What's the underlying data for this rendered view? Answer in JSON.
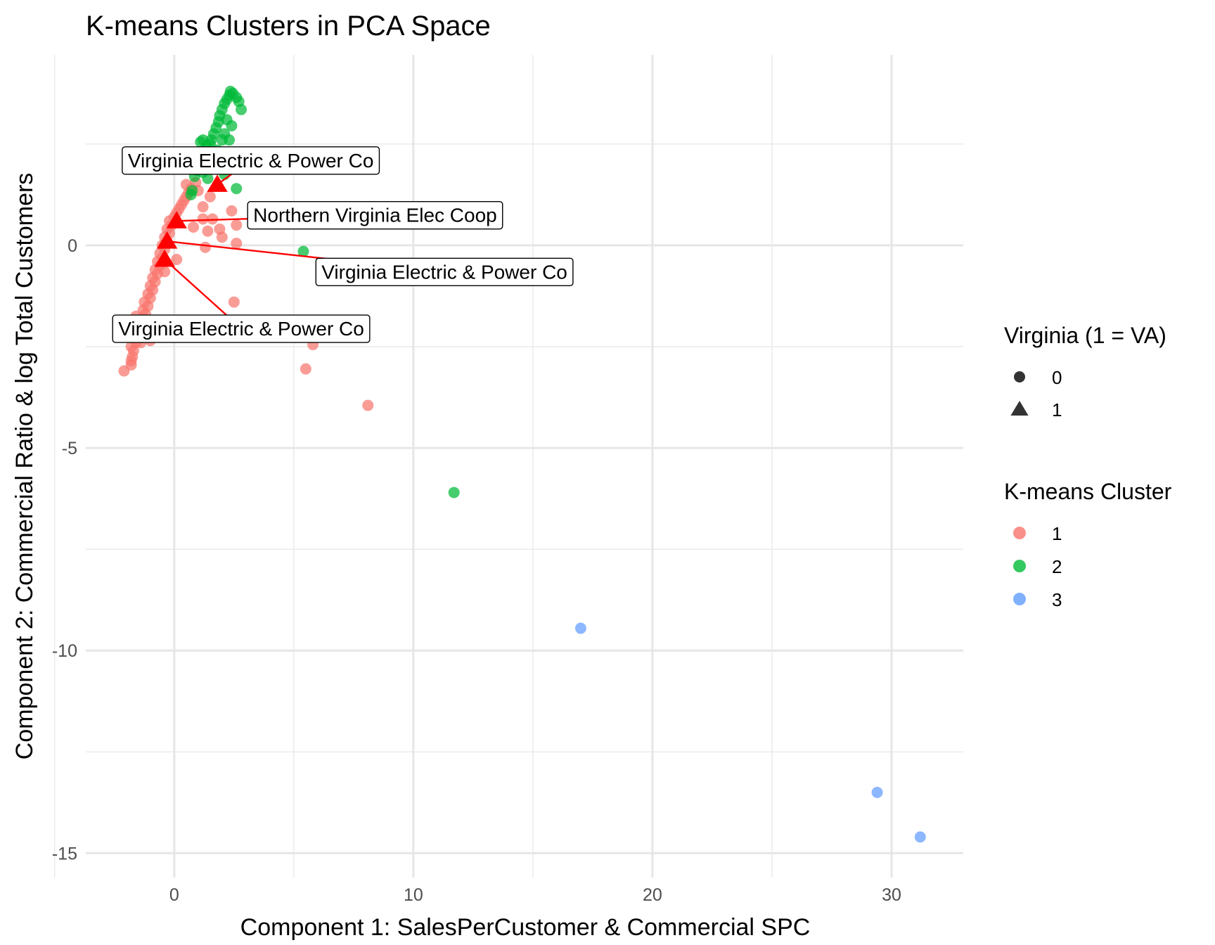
{
  "chart_data": {
    "type": "scatter",
    "title": "K-means Clusters in PCA Space",
    "xlabel": "Component 1: SalesPerCustomer & Commercial SPC",
    "ylabel": "Component 2: Commercial Ratio & log Total Customers",
    "xlim": [
      -3.7,
      33
    ],
    "ylim": [
      -15.6,
      4.7
    ],
    "x_ticks": [
      0,
      10,
      20,
      30
    ],
    "y_ticks": [
      0,
      -5,
      -10,
      -15
    ],
    "x_minor": [
      -5,
      5,
      15,
      25
    ],
    "y_minor": [
      2.5,
      -2.5,
      -7.5,
      -12.5
    ],
    "grid": true,
    "legend_position": "right",
    "cluster_colors": {
      "1": "#f8766d",
      "2": "#00ba38",
      "3": "#619cff"
    },
    "highlight_color": "#ff0000",
    "legends": [
      {
        "title": "Virginia (1 = VA)",
        "items": [
          {
            "label": "0",
            "shape": "circle"
          },
          {
            "label": "1",
            "shape": "triangle"
          }
        ]
      },
      {
        "title": "K-means Cluster",
        "items": [
          {
            "label": "1",
            "cluster": "1"
          },
          {
            "label": "2",
            "cluster": "2"
          },
          {
            "label": "3",
            "cluster": "3"
          }
        ]
      }
    ],
    "series": [
      {
        "name": "1",
        "points": [
          [
            -2.1,
            -3.1
          ],
          [
            -1.8,
            -2.95
          ],
          [
            -1.8,
            -2.85
          ],
          [
            -1.75,
            -2.75
          ],
          [
            -1.7,
            -2.6
          ],
          [
            -1.8,
            -2.5
          ],
          [
            -1.6,
            -2.4
          ],
          [
            -1.5,
            -2.25
          ],
          [
            -1.4,
            -2.15
          ],
          [
            -1.5,
            -2.05
          ],
          [
            -1.3,
            -1.95
          ],
          [
            -1.4,
            -1.85
          ],
          [
            -1.2,
            -1.7
          ],
          [
            -1.3,
            -1.6
          ],
          [
            -1.1,
            -1.5
          ],
          [
            -1.25,
            -1.4
          ],
          [
            -1.0,
            -1.3
          ],
          [
            -1.1,
            -1.2
          ],
          [
            -0.9,
            -1.1
          ],
          [
            -1.0,
            -1.0
          ],
          [
            -0.8,
            -0.9
          ],
          [
            -0.9,
            -0.8
          ],
          [
            -0.7,
            -0.7
          ],
          [
            -0.8,
            -0.6
          ],
          [
            -0.6,
            -0.5
          ],
          [
            -0.7,
            -0.4
          ],
          [
            -0.5,
            -0.3
          ],
          [
            -0.6,
            -0.2
          ],
          [
            -0.4,
            -0.1
          ],
          [
            -0.5,
            0.0
          ],
          [
            -0.3,
            0.1
          ],
          [
            -0.4,
            0.2
          ],
          [
            -0.2,
            0.3
          ],
          [
            -0.3,
            0.4
          ],
          [
            -0.1,
            0.5
          ],
          [
            -0.2,
            0.6
          ],
          [
            0.0,
            0.7
          ],
          [
            0.1,
            0.8
          ],
          [
            0.2,
            0.9
          ],
          [
            0.3,
            1.0
          ],
          [
            0.4,
            1.1
          ],
          [
            0.5,
            1.2
          ],
          [
            0.6,
            1.3
          ],
          [
            0.7,
            1.4
          ],
          [
            0.5,
            1.5
          ],
          [
            1.0,
            1.35
          ],
          [
            0.9,
            1.55
          ],
          [
            1.2,
            0.95
          ],
          [
            1.5,
            1.2
          ],
          [
            1.2,
            0.65
          ],
          [
            0.8,
            0.45
          ],
          [
            1.4,
            0.35
          ],
          [
            1.6,
            0.65
          ],
          [
            2.4,
            0.85
          ],
          [
            1.9,
            0.4
          ],
          [
            2.0,
            0.2
          ],
          [
            2.6,
            0.5
          ],
          [
            1.3,
            -0.05
          ],
          [
            2.6,
            0.05
          ],
          [
            -0.4,
            -0.65
          ],
          [
            0.1,
            -0.35
          ],
          [
            -1.0,
            -2.35
          ],
          [
            -1.4,
            -2.4
          ],
          [
            -1.7,
            -2.05
          ],
          [
            -1.6,
            -1.75
          ],
          [
            2.5,
            -1.4
          ],
          [
            5.8,
            -2.45
          ],
          [
            5.5,
            -3.05
          ],
          [
            8.1,
            -3.95
          ]
        ]
      },
      {
        "name": "2",
        "points": [
          [
            2.35,
            3.8
          ],
          [
            2.45,
            3.75
          ],
          [
            2.6,
            3.65
          ],
          [
            2.7,
            3.55
          ],
          [
            2.8,
            3.35
          ],
          [
            2.3,
            3.7
          ],
          [
            2.2,
            3.6
          ],
          [
            2.1,
            3.5
          ],
          [
            2.0,
            3.35
          ],
          [
            1.9,
            3.2
          ],
          [
            1.85,
            3.05
          ],
          [
            1.75,
            2.9
          ],
          [
            1.65,
            2.75
          ],
          [
            1.55,
            2.6
          ],
          [
            1.5,
            2.5
          ],
          [
            2.2,
            3.1
          ],
          [
            2.4,
            2.95
          ],
          [
            2.1,
            2.75
          ],
          [
            2.0,
            2.6
          ],
          [
            2.3,
            2.6
          ],
          [
            1.35,
            2.45
          ],
          [
            1.25,
            2.3
          ],
          [
            1.15,
            2.15
          ],
          [
            1.05,
            2.0
          ],
          [
            0.95,
            1.85
          ],
          [
            0.85,
            1.7
          ],
          [
            1.1,
            2.55
          ],
          [
            1.2,
            2.6
          ],
          [
            1.6,
            2.2
          ],
          [
            1.8,
            2.35
          ],
          [
            1.5,
            1.95
          ],
          [
            1.4,
            1.65
          ],
          [
            1.2,
            1.8
          ],
          [
            0.75,
            1.35
          ],
          [
            0.7,
            1.25
          ],
          [
            1.9,
            1.95
          ],
          [
            2.1,
            1.75
          ],
          [
            2.6,
            1.4
          ],
          [
            5.4,
            -0.15
          ],
          [
            11.7,
            -6.1
          ]
        ]
      },
      {
        "name": "3",
        "points": [
          [
            17.0,
            -9.45
          ],
          [
            29.4,
            -13.5
          ],
          [
            31.2,
            -14.6
          ]
        ]
      },
      {
        "name": "Virginia",
        "points": [
          [
            1.8,
            1.5
          ],
          [
            0.1,
            0.6
          ],
          [
            -0.3,
            0.1
          ],
          [
            -0.4,
            -0.35
          ]
        ]
      }
    ],
    "annotations": [
      {
        "text": "Virginia Electric & Power Co",
        "x": 1.8,
        "y": 1.5,
        "label_x": 3.2,
        "label_y": 2.1
      },
      {
        "text": "Northern Virginia Elec Coop",
        "x": 0.1,
        "y": 0.6,
        "label_x": 8.4,
        "label_y": 0.75
      },
      {
        "text": "Virginia Electric & Power Co",
        "x": -0.3,
        "y": 0.1,
        "label_x": 11.3,
        "label_y": -0.65
      },
      {
        "text": "Virginia Electric & Power Co",
        "x": -0.4,
        "y": -0.35,
        "label_x": 2.8,
        "label_y": -2.05
      }
    ]
  }
}
